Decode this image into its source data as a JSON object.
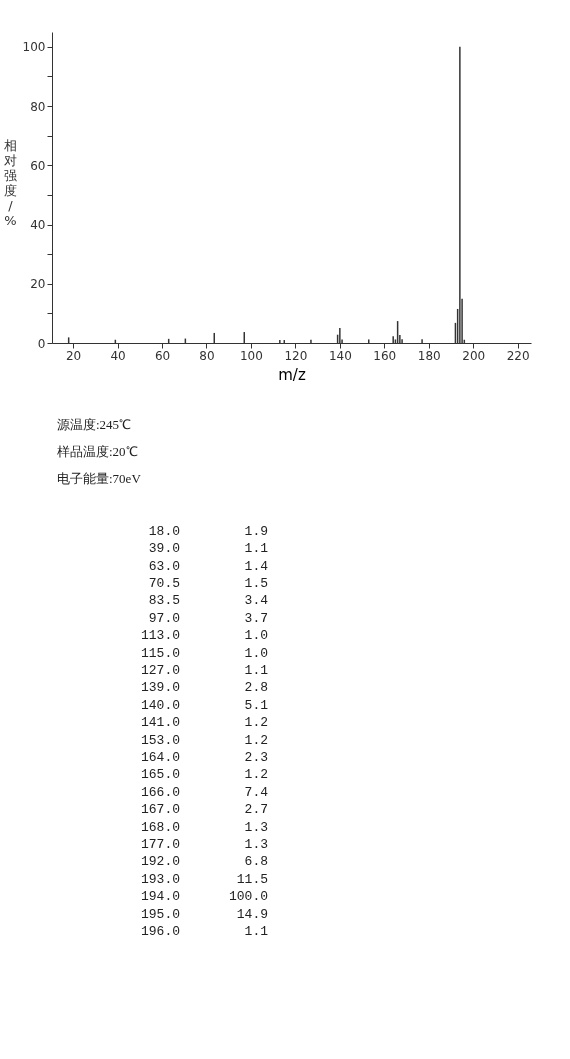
{
  "chart_data": {
    "type": "bar",
    "xlabel": "m/z",
    "ylabel": "相对强度/%",
    "x": [
      18.0,
      39.0,
      63.0,
      70.5,
      83.5,
      97.0,
      113.0,
      115.0,
      127.0,
      139.0,
      140.0,
      141.0,
      153.0,
      164.0,
      165.0,
      166.0,
      167.0,
      168.0,
      177.0,
      192.0,
      193.0,
      194.0,
      195.0,
      196.0
    ],
    "values": [
      1.9,
      1.1,
      1.4,
      1.5,
      3.4,
      3.7,
      1.0,
      1.0,
      1.1,
      2.8,
      5.1,
      1.2,
      1.2,
      2.3,
      1.2,
      7.4,
      2.7,
      1.3,
      1.3,
      6.8,
      11.5,
      100.0,
      14.9,
      1.1
    ],
    "color": "#333333",
    "xlim": [
      10.5,
      226
    ],
    "ylim": [
      0,
      105
    ],
    "xticks": [
      20,
      40,
      60,
      80,
      100,
      120,
      140,
      160,
      180,
      200,
      220
    ],
    "yticks": [
      0,
      {
        "value": 10,
        "label": null
      },
      20,
      {
        "value": 30,
        "label": null
      },
      40,
      {
        "value": 50,
        "label": null
      },
      60,
      {
        "value": 70,
        "label": null
      },
      80,
      {
        "value": 90,
        "label": null
      },
      100
    ],
    "grid": false,
    "annotations": [
      "源温度:245℃",
      "样品温度:20℃",
      "电子能量:70eV",
      "18.0",
      "39.0",
      "63.0",
      "70.5",
      "83.5",
      "97.0",
      "113.0",
      "115.0",
      "127.0",
      "139.0",
      "140.0",
      "141.0",
      "153.0",
      "164.0",
      "165.0",
      "166.0",
      "167.0",
      "168.0",
      "177.0",
      "192.0",
      "193.0",
      "194.0",
      "195.0",
      "196.0",
      "1.9",
      "1.1",
      "1.4",
      "1.5",
      "3.4",
      "3.7",
      "1.0",
      "1.0",
      "1.1",
      "2.8",
      "5.1",
      "1.2",
      "1.2",
      "2.3",
      "1.2",
      "7.4",
      "2.7",
      "1.3",
      "1.3",
      "6.8",
      "11.5",
      "100.0",
      "14.9",
      "1.1"
    ]
  }
}
